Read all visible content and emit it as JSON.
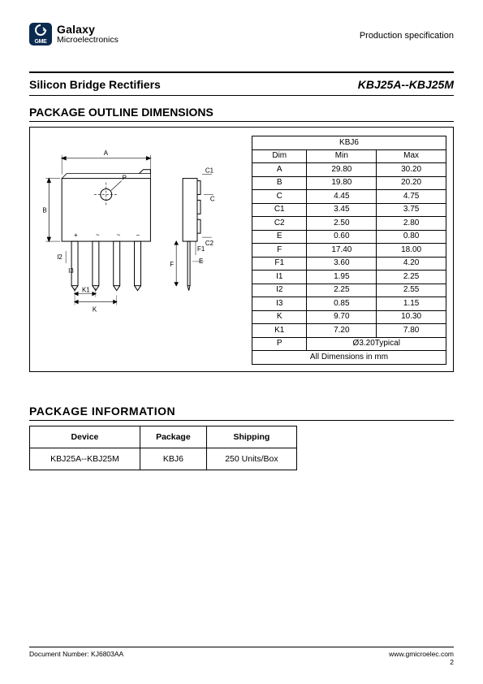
{
  "header": {
    "logo_abbr": "GME",
    "brand_line1": "Galaxy",
    "brand_line2": "Microelectronics",
    "registered": "®",
    "prod_spec": "Production specification"
  },
  "title": {
    "left": "Silicon Bridge Rectifiers",
    "right": "KBJ25A--KBJ25M"
  },
  "sections": {
    "outline": "PACKAGE OUTLINE DIMENSIONS",
    "pkginfo": "PACKAGE    INFORMATION"
  },
  "dim_table": {
    "title": "KBJ6",
    "headers": [
      "Dim",
      "Min",
      "Max"
    ],
    "rows": [
      [
        "A",
        "29.80",
        "30.20"
      ],
      [
        "B",
        "19.80",
        "20.20"
      ],
      [
        "C",
        "4.45",
        "4.75"
      ],
      [
        "C1",
        "3.45",
        "3.75"
      ],
      [
        "C2",
        "2.50",
        "2.80"
      ],
      [
        "E",
        "0.60",
        "0.80"
      ],
      [
        "F",
        "17.40",
        "18.00"
      ],
      [
        "F1",
        "3.60",
        "4.20"
      ],
      [
        "I1",
        "1.95",
        "2.25"
      ],
      [
        "I2",
        "2.25",
        "2.55"
      ],
      [
        "I3",
        "0.85",
        "1.15"
      ],
      [
        "K",
        "9.70",
        "10.30"
      ],
      [
        "K1",
        "7.20",
        "7.80"
      ]
    ],
    "p_row": [
      "P",
      "Ø3.20Typical"
    ],
    "footer": "All Dimensions in mm"
  },
  "pkg_table": {
    "headers": [
      "Device",
      "Package",
      "Shipping"
    ],
    "row": [
      "KBJ25A--KBJ25M",
      "KBJ6",
      "250 Units/Box"
    ]
  },
  "drawing_labels": {
    "A": "A",
    "B": "B",
    "P": "P",
    "I2": "I2",
    "I3": "I3",
    "K": "K",
    "K1": "K1",
    "C1": "C1",
    "C": "C",
    "C2": "C2",
    "F": "F",
    "F1": "F1",
    "E": "E",
    "plus": "+",
    "tilde1": "~",
    "tilde2": "~",
    "minus": "−"
  },
  "footer": {
    "left": "Document Number: KJ6803AA",
    "right1": "www.gmicroelec.com",
    "right2": "2"
  },
  "colors": {
    "logo_bg": "#0a2a50",
    "stroke": "#000000",
    "bg": "#ffffff"
  }
}
